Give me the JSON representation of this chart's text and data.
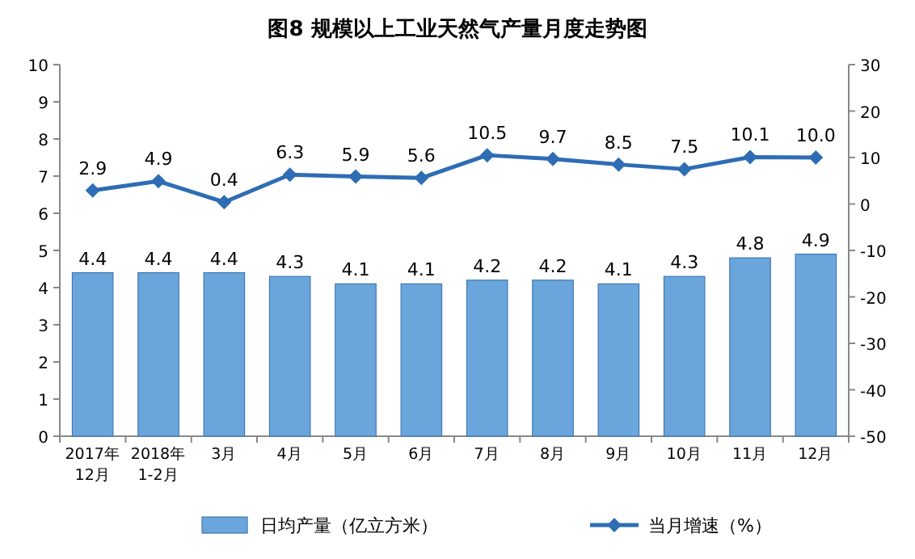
{
  "chart_data": {
    "type": "bar",
    "title": "图8  规模以上工业天然气产量月度走势图",
    "categories": [
      "2017年\n12月",
      "2018年\n1-2月",
      "3月",
      "4月",
      "5月",
      "6月",
      "7月",
      "8月",
      "9月",
      "10月",
      "11月",
      "12月"
    ],
    "series": [
      {
        "name": "日均产量（亿立方米）",
        "color": "#6aa6dc",
        "values": [
          4.4,
          4.4,
          4.4,
          4.3,
          4.1,
          4.1,
          4.2,
          4.2,
          4.1,
          4.3,
          4.8,
          4.9
        ]
      },
      {
        "name": "当月增速（%）",
        "type": "line",
        "axis": "y2",
        "color": "#2e6db4",
        "marker": "diamond",
        "values": [
          2.9,
          4.9,
          0.4,
          6.3,
          5.9,
          5.6,
          10.5,
          9.7,
          8.5,
          7.5,
          10.1,
          10.0
        ],
        "value_labels": [
          "2.9",
          "4.9",
          "0.4",
          "6.3",
          "5.9",
          "5.6",
          "10.5",
          "9.7",
          "8.5",
          "7.5",
          "10.1",
          "10.0"
        ]
      }
    ],
    "ylim": [
      0,
      10
    ],
    "yticks": [
      0,
      1,
      2,
      3,
      4,
      5,
      6,
      7,
      8,
      9,
      10
    ],
    "y2lim": [
      -50,
      30
    ],
    "y2ticks": [
      -50,
      -40,
      -30,
      -20,
      -10,
      0,
      10,
      20,
      30
    ],
    "data_labels": true,
    "legend": "bottom"
  }
}
